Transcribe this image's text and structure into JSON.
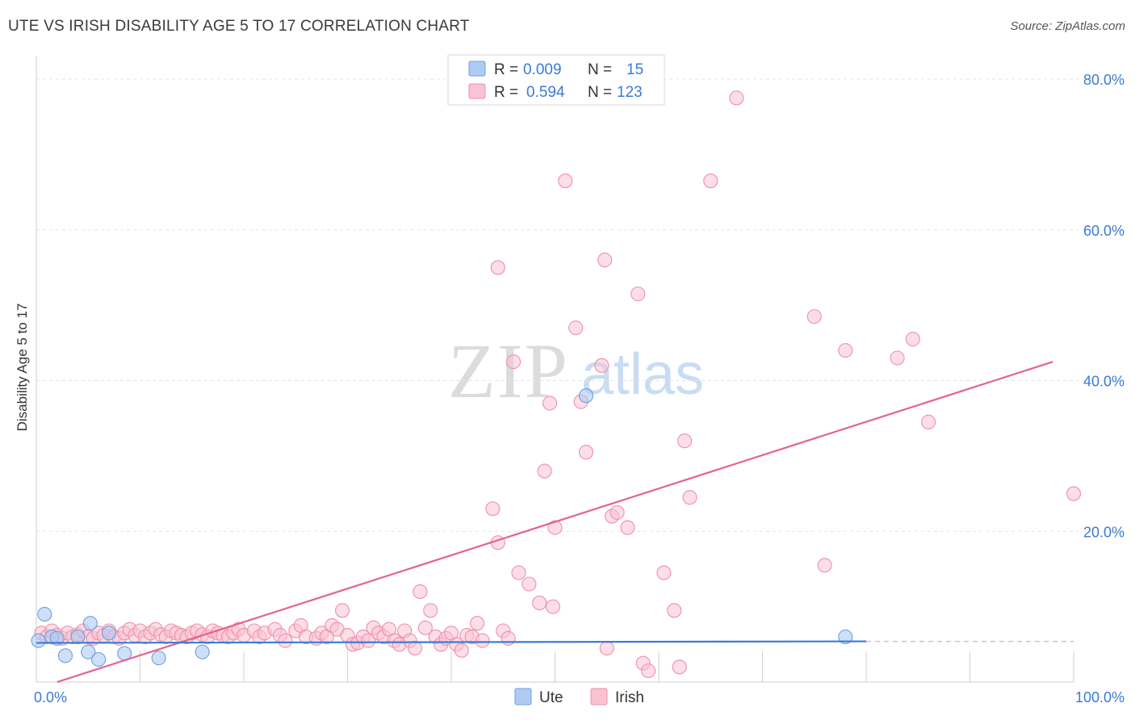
{
  "header": {
    "title": "UTE VS IRISH DISABILITY AGE 5 TO 17 CORRELATION CHART",
    "source": "Source: ZipAtlas.com"
  },
  "watermark": {
    "zip": "ZIP",
    "atlas": "atlas"
  },
  "legend_box": {
    "rows": [
      {
        "r_label": "R =",
        "r_value": "0.009",
        "n_label": "N =",
        "n_value": "15",
        "color": "#aecbf4",
        "stroke": "#6f9fe0"
      },
      {
        "r_label": "R =",
        "r_value": "0.594",
        "n_label": "N =",
        "n_value": "123",
        "color": "#f9c3d3",
        "stroke": "#ee8fab"
      }
    ]
  },
  "bottom_legend": [
    {
      "label": "Ute",
      "color": "#aecbf4",
      "stroke": "#6f9fe0"
    },
    {
      "label": "Irish",
      "color": "#f9c3d3",
      "stroke": "#ee8fab"
    }
  ],
  "colors": {
    "ute_line": "#3a7bd5",
    "irish_line": "#e5638c",
    "tick_text": "#3a7bd5"
  },
  "chart_data": {
    "type": "scatter",
    "title": "UTE VS IRISH DISABILITY AGE 5 TO 17 CORRELATION CHART",
    "xlabel": "",
    "ylabel": "Disability Age 5 to 17",
    "xlim": [
      0,
      100
    ],
    "ylim": [
      0,
      82
    ],
    "x_tick_labels": [
      {
        "value": 0,
        "label": "0.0%"
      },
      {
        "value": 100,
        "label": "100.0%"
      }
    ],
    "y_tick_labels": [
      {
        "value": 20,
        "label": "20.0%"
      },
      {
        "value": 40,
        "label": "40.0%"
      },
      {
        "value": 60,
        "label": "60.0%"
      },
      {
        "value": 80,
        "label": "80.0%"
      }
    ],
    "series": [
      {
        "name": "Ute",
        "R": 0.009,
        "N": 15,
        "points": [
          [
            0.2,
            5.5
          ],
          [
            0.8,
            9.0
          ],
          [
            1.5,
            6.0
          ],
          [
            2.0,
            5.8
          ],
          [
            2.8,
            3.5
          ],
          [
            4.0,
            6.0
          ],
          [
            5.0,
            4.0
          ],
          [
            5.2,
            7.8
          ],
          [
            6.0,
            3.0
          ],
          [
            7.0,
            6.5
          ],
          [
            8.5,
            3.8
          ],
          [
            11.8,
            3.2
          ],
          [
            16.0,
            4.0
          ],
          [
            53.0,
            38.0
          ],
          [
            78.0,
            6.0
          ]
        ],
        "trend": [
          [
            0,
            5.2
          ],
          [
            80,
            5.4
          ]
        ],
        "trend_extension": [
          [
            80,
            5.4
          ],
          [
            100,
            5.4
          ]
        ]
      },
      {
        "name": "Irish",
        "R": 0.594,
        "N": 123,
        "points": [
          [
            0.5,
            6.5
          ],
          [
            1.0,
            6.0
          ],
          [
            1.5,
            6.8
          ],
          [
            2.0,
            6.2
          ],
          [
            2.5,
            5.8
          ],
          [
            3.0,
            6.5
          ],
          [
            3.5,
            6.0
          ],
          [
            4.0,
            6.3
          ],
          [
            4.5,
            6.8
          ],
          [
            5.0,
            6.0
          ],
          [
            5.5,
            5.8
          ],
          [
            6.0,
            6.5
          ],
          [
            6.5,
            6.2
          ],
          [
            7.0,
            6.8
          ],
          [
            7.5,
            6.0
          ],
          [
            8.0,
            5.8
          ],
          [
            8.5,
            6.5
          ],
          [
            9.0,
            7.0
          ],
          [
            9.5,
            6.2
          ],
          [
            10.0,
            6.8
          ],
          [
            10.5,
            6.0
          ],
          [
            11.0,
            6.5
          ],
          [
            11.5,
            7.0
          ],
          [
            12.0,
            6.3
          ],
          [
            12.5,
            6.0
          ],
          [
            13.0,
            6.8
          ],
          [
            13.5,
            6.5
          ],
          [
            14.0,
            6.2
          ],
          [
            14.5,
            6.0
          ],
          [
            15.0,
            6.5
          ],
          [
            15.5,
            6.8
          ],
          [
            16.0,
            6.3
          ],
          [
            16.5,
            6.0
          ],
          [
            17.0,
            6.8
          ],
          [
            17.5,
            6.5
          ],
          [
            18.0,
            6.2
          ],
          [
            18.5,
            6.0
          ],
          [
            19.0,
            6.5
          ],
          [
            19.5,
            7.0
          ],
          [
            20.0,
            6.2
          ],
          [
            21.0,
            6.8
          ],
          [
            21.5,
            6.0
          ],
          [
            22.0,
            6.5
          ],
          [
            23.0,
            7.0
          ],
          [
            23.5,
            6.2
          ],
          [
            24.0,
            5.5
          ],
          [
            25.0,
            6.8
          ],
          [
            25.5,
            7.5
          ],
          [
            26.0,
            6.0
          ],
          [
            27.0,
            5.8
          ],
          [
            27.5,
            6.5
          ],
          [
            28.0,
            6.0
          ],
          [
            28.5,
            7.5
          ],
          [
            29.0,
            7.0
          ],
          [
            29.5,
            9.5
          ],
          [
            30.0,
            6.2
          ],
          [
            30.5,
            5.0
          ],
          [
            31.0,
            5.2
          ],
          [
            31.5,
            6.0
          ],
          [
            32.0,
            5.5
          ],
          [
            32.5,
            7.2
          ],
          [
            33.0,
            6.5
          ],
          [
            33.5,
            6.0
          ],
          [
            34.0,
            7.0
          ],
          [
            34.5,
            5.5
          ],
          [
            35.0,
            5.0
          ],
          [
            35.5,
            6.8
          ],
          [
            36.0,
            5.5
          ],
          [
            36.5,
            4.5
          ],
          [
            37.0,
            12.0
          ],
          [
            37.5,
            7.2
          ],
          [
            38.0,
            9.5
          ],
          [
            38.5,
            6.0
          ],
          [
            39.0,
            5.0
          ],
          [
            39.5,
            5.8
          ],
          [
            40.0,
            6.5
          ],
          [
            40.5,
            5.0
          ],
          [
            41.0,
            4.2
          ],
          [
            41.5,
            6.2
          ],
          [
            42.0,
            6.0
          ],
          [
            42.5,
            7.8
          ],
          [
            43.0,
            5.5
          ],
          [
            44.0,
            23.0
          ],
          [
            44.5,
            18.5
          ],
          [
            45.0,
            6.8
          ],
          [
            45.5,
            5.8
          ],
          [
            46.0,
            42.5
          ],
          [
            46.5,
            14.5
          ],
          [
            47.5,
            13.0
          ],
          [
            48.5,
            10.5
          ],
          [
            49.0,
            28.0
          ],
          [
            49.5,
            37.0
          ],
          [
            50.0,
            20.5
          ],
          [
            51.0,
            66.5
          ],
          [
            52.0,
            47.0
          ],
          [
            52.5,
            37.2
          ],
          [
            53.0,
            30.5
          ],
          [
            54.5,
            42.0
          ],
          [
            55.0,
            4.5
          ],
          [
            55.5,
            22.0
          ],
          [
            56.0,
            22.5
          ],
          [
            57.0,
            20.5
          ],
          [
            58.0,
            51.5
          ],
          [
            58.5,
            2.5
          ],
          [
            59.0,
            1.5
          ],
          [
            60.5,
            14.5
          ],
          [
            61.5,
            9.5
          ],
          [
            62.0,
            2.0
          ],
          [
            62.5,
            32.0
          ],
          [
            63.0,
            24.5
          ],
          [
            65.0,
            66.5
          ],
          [
            67.5,
            77.5
          ],
          [
            75.0,
            48.5
          ],
          [
            76.0,
            15.5
          ],
          [
            78.0,
            44.0
          ],
          [
            83.0,
            43.0
          ],
          [
            84.5,
            45.5
          ],
          [
            86.0,
            34.5
          ],
          [
            100.0,
            25.0
          ],
          [
            54.8,
            56.0
          ],
          [
            44.5,
            55.0
          ],
          [
            49.8,
            10.0
          ]
        ],
        "trend": [
          [
            2,
            0
          ],
          [
            98,
            42.5
          ]
        ]
      }
    ]
  }
}
